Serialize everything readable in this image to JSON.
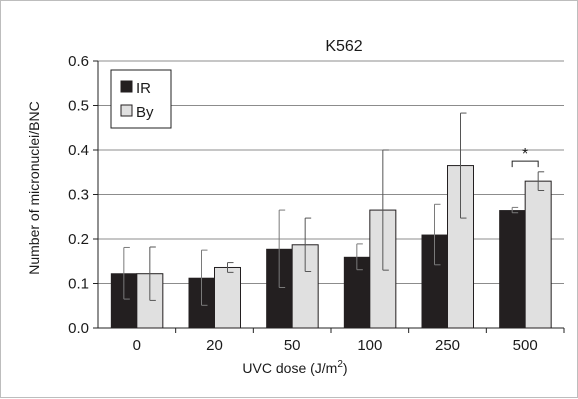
{
  "chart_data": {
    "type": "bar",
    "title": "K562",
    "xlabel_prefix": "UVC dose (J/m",
    "xlabel_sup": "2",
    "xlabel_suffix": ")",
    "ylabel": "Number of micronuclei/BNC",
    "ylim": [
      0,
      0.6
    ],
    "yticks": [
      "0.0",
      "0.1",
      "0.2",
      "0.3",
      "0.4",
      "0.5",
      "0.6"
    ],
    "categories": [
      "0",
      "20",
      "50",
      "100",
      "250",
      "500"
    ],
    "grid": true,
    "legend_position": "top-left",
    "series": [
      {
        "name": "IR",
        "color": "#231f20",
        "values": [
          0.123,
          0.113,
          0.178,
          0.16,
          0.21,
          0.265
        ],
        "errors": [
          0.058,
          0.062,
          0.087,
          0.029,
          0.068,
          0.006
        ]
      },
      {
        "name": "By",
        "color": "#e0e0e0",
        "values": [
          0.122,
          0.136,
          0.187,
          0.265,
          0.365,
          0.33
        ],
        "errors": [
          0.06,
          0.011,
          0.06,
          0.135,
          0.118,
          0.021
        ]
      }
    ],
    "annotations": [
      {
        "category": "500",
        "text": "*"
      }
    ]
  }
}
